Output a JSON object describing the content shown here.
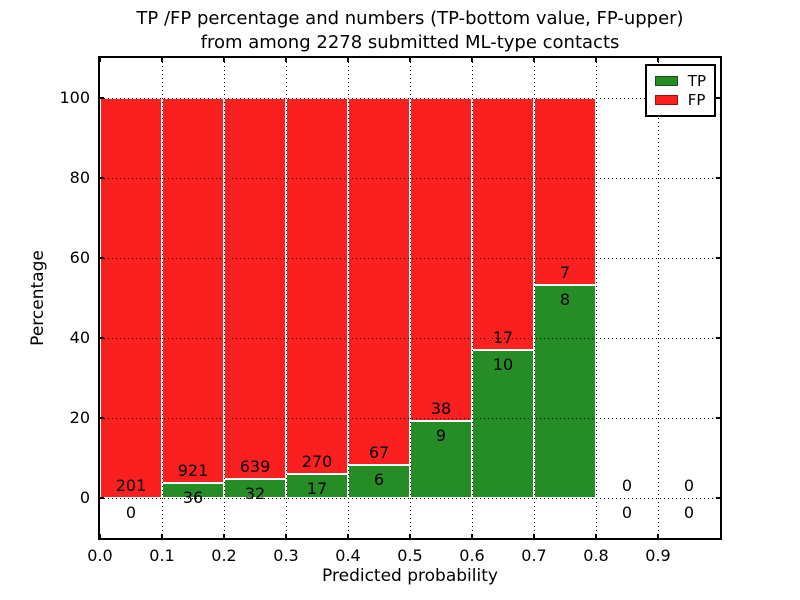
{
  "title": {
    "line1": "TP /FP percentage and numbers (TP-bottom value, FP-upper)",
    "line2": "from among 2278 submitted ML-type contacts"
  },
  "axes": {
    "xlabel": "Predicted probability",
    "ylabel": "Percentage",
    "xtick_labels": [
      "0.0",
      "0.1",
      "0.2",
      "0.3",
      "0.4",
      "0.5",
      "0.6",
      "0.7",
      "0.8",
      "0.9"
    ],
    "ytick_labels": [
      "0",
      "20",
      "40",
      "60",
      "80",
      "100"
    ],
    "grid_style": "dotted"
  },
  "legend": {
    "position": "upper right",
    "entries": [
      {
        "label": "TP",
        "color": "#268c26"
      },
      {
        "label": "FP",
        "color": "#fa2020"
      }
    ]
  },
  "chart_data": {
    "type": "bar",
    "stacked": true,
    "normalized": "each bin stack scaled to 100 percent",
    "title": "TP /FP percentage and numbers (TP-bottom value, FP-upper) from among 2278 submitted ML-type contacts",
    "xlabel": "Predicted probability",
    "ylabel": "Percentage",
    "xlim": [
      0,
      1
    ],
    "ylim": [
      -10,
      110
    ],
    "bin_edges": [
      0.0,
      0.1,
      0.2,
      0.3,
      0.4,
      0.5,
      0.6,
      0.7,
      0.8,
      0.9,
      1.0
    ],
    "series": [
      {
        "name": "TP",
        "color": "#268c26",
        "counts": [
          0,
          36,
          32,
          17,
          6,
          9,
          10,
          8,
          0,
          0
        ]
      },
      {
        "name": "FP",
        "color": "#fa2020",
        "counts": [
          201,
          921,
          639,
          270,
          67,
          38,
          17,
          7,
          0,
          0
        ]
      }
    ],
    "tp_percent_per_bin": [
      0,
      3.76,
      4.77,
      5.92,
      8.22,
      19.15,
      37.04,
      53.33,
      0,
      0
    ],
    "total_contacts": 2278
  }
}
